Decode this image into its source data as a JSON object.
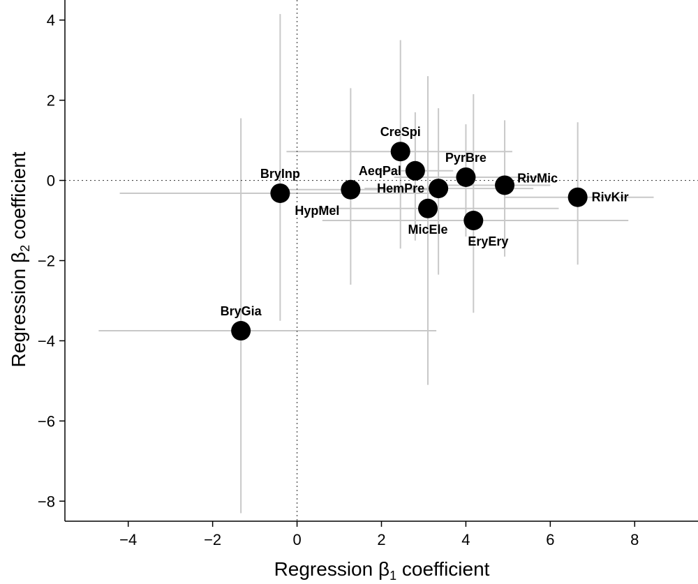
{
  "chart_data": {
    "type": "scatter",
    "title": "",
    "xlabel": {
      "prefix": "Regression β",
      "sub": "1",
      "suffix": " coefficient"
    },
    "ylabel": {
      "prefix": "Regression β",
      "sub": "2",
      "suffix": " coefficient"
    },
    "xlim": [
      -5.5,
      9.5
    ],
    "ylim": [
      -8.5,
      4.5
    ],
    "xticks": [
      -4,
      -2,
      0,
      2,
      4,
      6,
      8
    ],
    "yticks": [
      -8,
      -6,
      -4,
      -2,
      0,
      2,
      4
    ],
    "reference_lines": {
      "x": 0,
      "y": 0,
      "style": "dotted"
    },
    "grid": false,
    "error_bar_color": "#c8c8c8",
    "point_color": "#000000",
    "points": [
      {
        "label": "BryGia",
        "x": -1.33,
        "y": -3.75,
        "x_low": -4.7,
        "x_high": 3.3,
        "y_low": -8.3,
        "y_high": 1.55,
        "label_pos": "above"
      },
      {
        "label": "BryInp",
        "x": -0.4,
        "y": -0.32,
        "x_low": -4.2,
        "x_high": 3.3,
        "y_low": -3.5,
        "y_high": 4.15,
        "label_pos": "above"
      },
      {
        "label": "HypMel",
        "x": 1.27,
        "y": -0.23,
        "x_low": -0.3,
        "x_high": 3.1,
        "y_low": -2.6,
        "y_high": 2.3,
        "label_pos": "below-left"
      },
      {
        "label": "CreSpi",
        "x": 2.45,
        "y": 0.72,
        "x_low": -0.25,
        "x_high": 5.1,
        "y_low": -1.7,
        "y_high": 3.5,
        "label_pos": "above"
      },
      {
        "label": "AeqPal",
        "x": 2.8,
        "y": 0.24,
        "x_low": 1.9,
        "x_high": 3.7,
        "y_low": -1.5,
        "y_high": 1.7,
        "label_pos": "left"
      },
      {
        "label": "MicEle",
        "x": 3.1,
        "y": -0.7,
        "x_low": 0.5,
        "x_high": 6.2,
        "y_low": -5.1,
        "y_high": 2.6,
        "label_pos": "below"
      },
      {
        "label": "HemPre",
        "x": 3.35,
        "y": -0.2,
        "x_low": 1.6,
        "x_high": 5.6,
        "y_low": -2.35,
        "y_high": 1.8,
        "label_pos": "left"
      },
      {
        "label": "PyrBre",
        "x": 4.0,
        "y": 0.08,
        "x_low": 2.3,
        "x_high": 5.7,
        "y_low": -1.4,
        "y_high": 1.4,
        "label_pos": "above"
      },
      {
        "label": "EryEry",
        "x": 4.18,
        "y": -1.0,
        "x_low": 0.6,
        "x_high": 7.85,
        "y_low": -3.3,
        "y_high": 2.15,
        "label_pos": "below-right"
      },
      {
        "label": "RivMic",
        "x": 4.92,
        "y": -0.12,
        "x_low": 3.5,
        "x_high": 6.0,
        "y_low": -1.9,
        "y_high": 1.5,
        "label_pos": "above-right"
      },
      {
        "label": "RivKir",
        "x": 6.65,
        "y": -0.42,
        "x_low": 4.9,
        "x_high": 8.45,
        "y_low": -2.1,
        "y_high": 1.45,
        "label_pos": "right"
      }
    ]
  }
}
